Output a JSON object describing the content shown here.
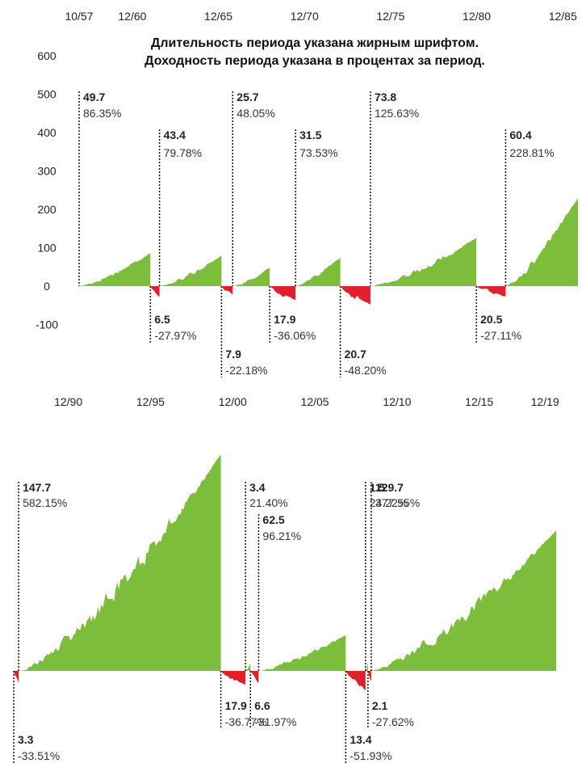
{
  "chart_data": [
    {
      "type": "area",
      "title": [
        "Длительность периода указана жирным шрифтом.",
        "Доходность периода указана в процентах за период."
      ],
      "x_ticks": [
        "10/57",
        "12/60",
        "12/65",
        "12/70",
        "12/75",
        "12/80",
        "12/85"
      ],
      "x_tick_dates": [
        1957.83,
        1960.92,
        1965.92,
        1970.92,
        1975.92,
        1980.92,
        1985.92
      ],
      "x_range": [
        1957.83,
        1986.8
      ],
      "y_ticks": [
        "600",
        "500",
        "400",
        "300",
        "200",
        "100",
        "0",
        "-100"
      ],
      "y_tick_values": [
        600,
        500,
        400,
        300,
        200,
        100,
        0,
        -100
      ],
      "ylim": [
        -140,
        640
      ],
      "periods": [
        {
          "kind": "bull",
          "start": 1957.83,
          "end": 1961.97,
          "duration": "49.7",
          "return": "86.35%",
          "return_value": 86.35
        },
        {
          "kind": "bear",
          "start": 1961.97,
          "end": 1962.5,
          "duration": "6.5",
          "return": "-27.97%",
          "return_value": -27.97
        },
        {
          "kind": "bull",
          "start": 1962.5,
          "end": 1966.1,
          "duration": "43.4",
          "return": "79.78%",
          "return_value": 79.78
        },
        {
          "kind": "bear",
          "start": 1966.1,
          "end": 1966.75,
          "duration": "7.9",
          "return": "-22.18%",
          "return_value": -22.18
        },
        {
          "kind": "bull",
          "start": 1966.75,
          "end": 1968.9,
          "duration": "25.7",
          "return": "48.05%",
          "return_value": 48.05
        },
        {
          "kind": "bear",
          "start": 1968.9,
          "end": 1970.4,
          "duration": "17.9",
          "return": "-36.06%",
          "return_value": -36.06
        },
        {
          "kind": "bull",
          "start": 1970.4,
          "end": 1973.0,
          "duration": "31.5",
          "return": "73.53%",
          "return_value": 73.53
        },
        {
          "kind": "bear",
          "start": 1973.0,
          "end": 1974.75,
          "duration": "20.7",
          "return": "-48.20%",
          "return_value": -48.2
        },
        {
          "kind": "bull",
          "start": 1974.75,
          "end": 1980.9,
          "duration": "73.8",
          "return": "125.63%",
          "return_value": 125.63
        },
        {
          "kind": "bear",
          "start": 1980.9,
          "end": 1982.6,
          "duration": "20.5",
          "return": "-27.11%",
          "return_value": -27.11
        },
        {
          "kind": "bull",
          "start": 1982.6,
          "end": 1986.8,
          "duration": "60.4",
          "return": "228.81%",
          "return_value": 228.81
        }
      ]
    },
    {
      "type": "area",
      "x_ticks": [
        "12/90",
        "12/95",
        "12/00",
        "12/05",
        "12/10",
        "12/15",
        "12/19"
      ],
      "x_tick_dates": [
        1990.92,
        1995.92,
        2000.92,
        2005.92,
        2010.92,
        2015.92,
        2019.92
      ],
      "x_range": [
        1987.6,
        2020.6
      ],
      "ylim": [
        -140,
        640
      ],
      "periods": [
        {
          "kind": "bear",
          "start": 1987.6,
          "end": 1987.9,
          "duration": "3.3",
          "return": "-33.51%",
          "return_value": -33.51
        },
        {
          "kind": "bull",
          "start": 1987.9,
          "end": 2000.2,
          "duration": "147.7",
          "return": "582.15%",
          "return_value": 582.15
        },
        {
          "kind": "bear",
          "start": 2000.2,
          "end": 2001.7,
          "duration": "17.9",
          "return": "-36.77%",
          "return_value": -36.77
        },
        {
          "kind": "bull",
          "start": 2001.7,
          "end": 2002.0,
          "duration": "3.4",
          "return": "21.40%",
          "return_value": 21.4
        },
        {
          "kind": "bear",
          "start": 2002.0,
          "end": 2002.5,
          "duration": "6.6",
          "return": "-31.97%",
          "return_value": -31.97
        },
        {
          "kind": "bull",
          "start": 2002.5,
          "end": 2007.8,
          "duration": "62.5",
          "return": "96.21%",
          "return_value": 96.21
        },
        {
          "kind": "bear",
          "start": 2007.8,
          "end": 2009.0,
          "duration": "13.4",
          "return": "-51.93%",
          "return_value": -51.93
        },
        {
          "kind": "bull",
          "start": 2009.0,
          "end": 2009.15,
          "duration": "1.5",
          "return": "24.22%",
          "return_value": 24.22
        },
        {
          "kind": "bear",
          "start": 2009.15,
          "end": 2009.35,
          "duration": "2.1",
          "return": "-27.62%",
          "return_value": -27.62
        },
        {
          "kind": "bull",
          "start": 2009.35,
          "end": 2020.6,
          "duration": "129.7",
          "return": "377.55%",
          "return_value": 377.55
        }
      ]
    }
  ],
  "colors": {
    "bull": "#7dbd3c",
    "bear": "#e0202a",
    "text": "#222222",
    "leader": "#111111"
  }
}
